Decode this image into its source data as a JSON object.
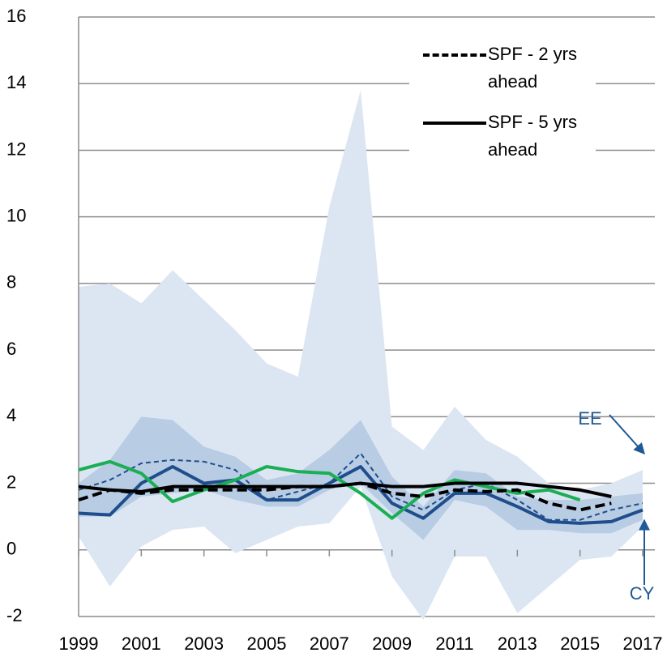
{
  "chart_data": {
    "type": "line",
    "x": [
      1999,
      2000,
      2001,
      2002,
      2003,
      2004,
      2005,
      2006,
      2007,
      2008,
      2009,
      2010,
      2011,
      2012,
      2013,
      2014,
      2015,
      2016,
      2017
    ],
    "xlim": [
      1999,
      2017
    ],
    "xticks": [
      1999,
      2001,
      2003,
      2005,
      2007,
      2009,
      2011,
      2013,
      2015,
      2017
    ],
    "ylim": [
      -2,
      16
    ],
    "yticks": [
      -2,
      0,
      2,
      4,
      6,
      8,
      10,
      12,
      14,
      16
    ],
    "grid": true,
    "legend": "upper right",
    "bands": [
      {
        "color": "#dce6f2",
        "upper": [
          7.9,
          8.0,
          7.4,
          8.4,
          7.5,
          6.6,
          5.6,
          5.2,
          10.3,
          13.8,
          3.7,
          3.0,
          4.3,
          3.3,
          2.8,
          2.0,
          1.8,
          2.0,
          2.4
        ],
        "lower": [
          0.4,
          -1.1,
          0.1,
          0.6,
          0.7,
          -0.1,
          0.3,
          0.7,
          0.8,
          1.9,
          -0.8,
          -2.1,
          -0.2,
          -0.2,
          -1.9,
          -1.1,
          -0.3,
          -0.2,
          0.7
        ]
      },
      {
        "color": "#b8cce4",
        "upper": [
          2.0,
          2.7,
          4.0,
          3.9,
          3.1,
          2.8,
          2.1,
          2.3,
          3.0,
          3.9,
          2.2,
          1.3,
          2.4,
          2.3,
          1.6,
          1.5,
          1.5,
          1.6,
          1.7
        ],
        "lower": [
          1.0,
          1.0,
          1.6,
          1.7,
          1.8,
          1.5,
          1.3,
          1.3,
          1.8,
          2.0,
          1.1,
          0.3,
          1.5,
          1.3,
          0.6,
          0.6,
          0.5,
          0.5,
          0.9
        ]
      }
    ],
    "series": [
      {
        "color": "#1f4e8c",
        "dash": false,
        "width": 4,
        "values": [
          1.1,
          1.05,
          2.0,
          2.5,
          2.0,
          2.1,
          1.5,
          1.5,
          2.0,
          2.5,
          1.4,
          0.95,
          1.7,
          1.7,
          1.3,
          0.85,
          0.8,
          0.85,
          1.2
        ]
      },
      {
        "color": "#1f4e8c",
        "dash": true,
        "width": 2,
        "values": [
          1.8,
          2.1,
          2.6,
          2.7,
          2.65,
          2.4,
          1.5,
          1.75,
          2.0,
          2.9,
          1.6,
          1.2,
          1.8,
          2.0,
          1.5,
          0.9,
          0.9,
          1.2,
          1.4
        ]
      },
      {
        "color": "#1aaf54",
        "dash": false,
        "width": 4,
        "values": [
          2.4,
          2.65,
          2.3,
          1.45,
          1.8,
          2.1,
          2.5,
          2.35,
          2.3,
          1.7,
          0.95,
          1.7,
          2.1,
          1.9,
          1.7,
          1.8,
          1.5,
          null,
          null
        ]
      },
      {
        "name": "SPF - 2 yrs ahead",
        "color": "#000000",
        "dash": true,
        "width": 4,
        "values": [
          1.5,
          1.8,
          1.7,
          1.8,
          1.8,
          1.8,
          1.8,
          1.9,
          1.9,
          2.0,
          1.7,
          1.6,
          1.8,
          1.75,
          1.8,
          1.4,
          1.2,
          1.4,
          null
        ]
      },
      {
        "name": "SPF - 5 yrs ahead",
        "color": "#000000",
        "dash": false,
        "width": 4,
        "values": [
          1.9,
          1.8,
          1.75,
          1.9,
          1.9,
          1.9,
          1.9,
          1.9,
          1.9,
          2.0,
          1.9,
          1.9,
          2.0,
          2.0,
          2.0,
          1.9,
          1.8,
          1.6,
          null
        ]
      }
    ],
    "annotations": [
      "EE",
      "CY"
    ]
  }
}
